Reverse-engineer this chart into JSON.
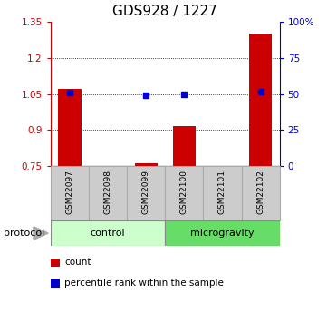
{
  "title": "GDS928 / 1227",
  "samples": [
    "GSM22097",
    "GSM22098",
    "GSM22099",
    "GSM22100",
    "GSM22101",
    "GSM22102"
  ],
  "groups": [
    {
      "name": "control",
      "indices": [
        0,
        1,
        2
      ],
      "color": "#ccffcc"
    },
    {
      "name": "microgravity",
      "indices": [
        3,
        4,
        5
      ],
      "color": "#66dd66"
    }
  ],
  "bar_values": [
    1.07,
    0.75,
    0.76,
    0.915,
    0.75,
    1.3
  ],
  "dot_values": [
    1.055,
    null,
    1.045,
    1.05,
    null,
    1.06
  ],
  "ylim_left": [
    0.75,
    1.35
  ],
  "ylim_right": [
    0,
    100
  ],
  "yticks_left": [
    0.75,
    0.9,
    1.05,
    1.2,
    1.35
  ],
  "ytick_labels_left": [
    "0.75",
    "0.9",
    "1.05",
    "1.2",
    "1.35"
  ],
  "yticks_right": [
    0,
    25,
    50,
    75,
    100
  ],
  "ytick_labels_right": [
    "0",
    "25",
    "50",
    "75",
    "100%"
  ],
  "bar_color": "#cc0000",
  "dot_color": "#0000cc",
  "bar_width": 0.6,
  "grid_yticks": [
    0.9,
    1.05,
    1.2
  ],
  "protocol_label": "protocol",
  "legend_items": [
    {
      "color": "#cc0000",
      "label": "count"
    },
    {
      "color": "#0000cc",
      "label": "percentile rank within the sample"
    }
  ],
  "sample_box_color": "#cccccc",
  "title_fontsize": 11
}
